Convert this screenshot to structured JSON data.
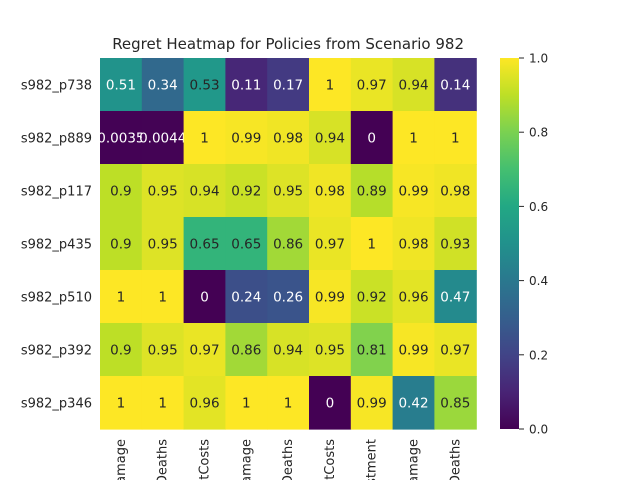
{
  "chart_data": {
    "type": "heatmap",
    "title": "Regret Heatmap for Policies from Scenario 982",
    "rows": [
      "s982_p738",
      "s982_p889",
      "s982_p117",
      "s982_p435",
      "s982_p510",
      "s982_p392",
      "s982_p346"
    ],
    "columns": [
      "amage",
      "Deaths",
      "ntCosts",
      "amage",
      "Deaths",
      "ntCosts",
      "stment",
      "amage",
      "Deaths"
    ],
    "values": [
      [
        0.51,
        0.34,
        0.53,
        0.11,
        0.17,
        1,
        0.97,
        0.94,
        0.14
      ],
      [
        0.0035,
        0.0044,
        1,
        0.99,
        0.98,
        0.94,
        0,
        1,
        1
      ],
      [
        0.9,
        0.95,
        0.94,
        0.92,
        0.95,
        0.98,
        0.89,
        0.99,
        0.98
      ],
      [
        0.9,
        0.95,
        0.65,
        0.65,
        0.86,
        0.97,
        1,
        0.98,
        0.93
      ],
      [
        1,
        1,
        0,
        0.24,
        0.26,
        0.99,
        0.92,
        0.96,
        0.47
      ],
      [
        0.9,
        0.95,
        0.97,
        0.86,
        0.94,
        0.95,
        0.81,
        0.99,
        0.97
      ],
      [
        1,
        1,
        0.96,
        1,
        1,
        0,
        0.99,
        0.42,
        0.85
      ]
    ],
    "cell_labels": [
      [
        "0.51",
        "0.34",
        "0.53",
        "0.11",
        "0.17",
        "1",
        "0.97",
        "0.94",
        "0.14"
      ],
      [
        "0.0035",
        "0.0044",
        "1",
        "0.99",
        "0.98",
        "0.94",
        "0",
        "1",
        "1"
      ],
      [
        "0.9",
        "0.95",
        "0.94",
        "0.92",
        "0.95",
        "0.98",
        "0.89",
        "0.99",
        "0.98"
      ],
      [
        "0.9",
        "0.95",
        "0.65",
        "0.65",
        "0.86",
        "0.97",
        "1",
        "0.98",
        "0.93"
      ],
      [
        "1",
        "1",
        "0",
        "0.24",
        "0.26",
        "0.99",
        "0.92",
        "0.96",
        "0.47"
      ],
      [
        "0.9",
        "0.95",
        "0.97",
        "0.86",
        "0.94",
        "0.95",
        "0.81",
        "0.99",
        "0.97"
      ],
      [
        "1",
        "1",
        "0.96",
        "1",
        "1",
        "0",
        "0.99",
        "0.42",
        "0.85"
      ]
    ],
    "colormap": "viridis",
    "vmin": 0,
    "vmax": 1,
    "colorbar_ticks": [
      "0.0",
      "0.2",
      "0.4",
      "0.6",
      "0.8",
      "1.0"
    ],
    "colorbar_tick_values": [
      0,
      0.2,
      0.4,
      0.6,
      0.8,
      1.0
    ],
    "grid": false,
    "legend": "colorbar-right"
  }
}
